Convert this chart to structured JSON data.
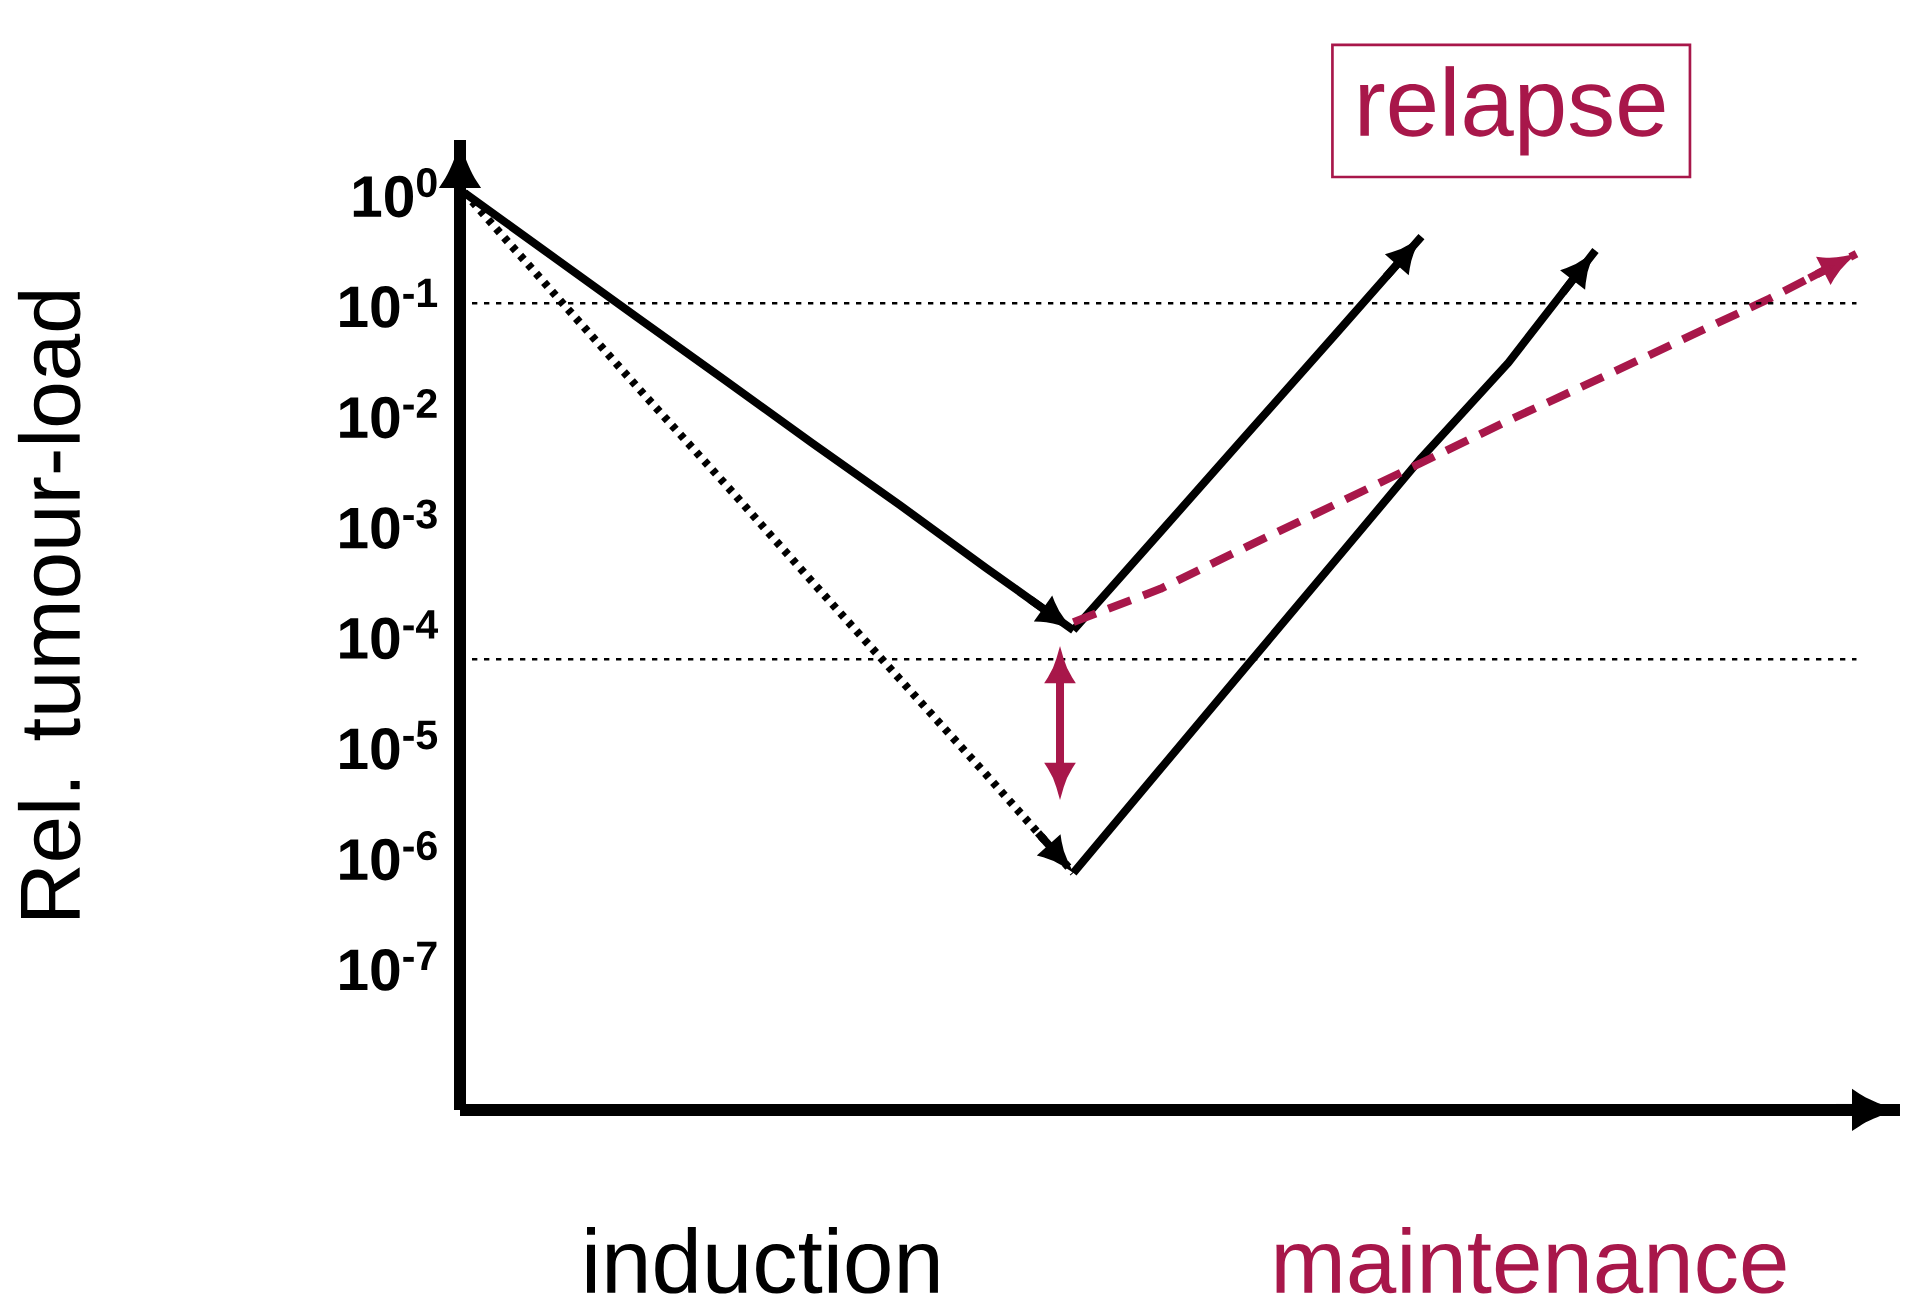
{
  "chart_data": {
    "type": "line",
    "log": "y",
    "ylabel": "Rel. tumour-load",
    "categories": [
      null,
      null,
      null,
      null,
      null,
      null,
      null,
      null,
      null,
      null,
      null,
      null,
      null,
      null,
      null,
      null,
      null
    ],
    "ylim": [
      5e-09,
      3
    ],
    "yticks": [
      {
        "value": 1,
        "label": "10$^{0}$"
      },
      {
        "value": 0.1,
        "label": "10$^{-1}$"
      },
      {
        "value": 0.01,
        "label": "10$^{-2}$"
      },
      {
        "value": 0.001,
        "label": "10$^{-3}$"
      },
      {
        "value": 0.0001,
        "label": "10$^{-4}$"
      },
      {
        "value": 1e-05,
        "label": "10$^{-5}$"
      },
      {
        "value": 1e-06,
        "label": "10$^{-6}$"
      },
      {
        "value": 1e-07,
        "label": "10$^{-7}$"
      }
    ],
    "tick_labels": "y",
    "grid": false,
    "series": [
      {
        "color": "#000000",
        "line_style": "solid",
        "values": [
          1,
          0.27,
          0.073,
          0.02,
          0.0054,
          0.0015,
          0.0004,
          0.00011,
          null,
          null,
          null,
          null,
          null,
          null,
          null,
          null,
          null
        ]
      },
      {
        "color": "#000000",
        "line_style": "dotted",
        "values": [
          1,
          0.13,
          0.017,
          0.0023,
          0.0003,
          4e-05,
          5.4e-06,
          7e-07,
          null,
          null,
          null,
          null,
          null,
          null,
          null,
          null,
          null
        ]
      },
      {
        "color": "#000000",
        "line_style": "solid",
        "values": [
          null,
          null,
          null,
          null,
          null,
          null,
          null,
          0.00011,
          0.00085,
          0.0066,
          0.051,
          0.4,
          null,
          null,
          null,
          null,
          null
        ]
      },
      {
        "color": "#000000",
        "line_style": "solid",
        "values": [
          null,
          null,
          null,
          null,
          null,
          null,
          null,
          7e-07,
          6.1e-06,
          5.3e-05,
          0.00046,
          0.004,
          0.029,
          0.3,
          null,
          null,
          null
        ]
      },
      {
        "color": "#a8174a",
        "line_style": "dashed",
        "values": [
          null,
          null,
          null,
          null,
          null,
          null,
          null,
          0.00013,
          0.00026,
          0.00063,
          0.0015,
          0.0036,
          0.0087,
          0.02,
          0.047,
          0.11,
          0.28
        ]
      }
    ],
    "ref_lines": [
      {
        "axis": "y",
        "value": 0.1,
        "color": "#000000",
        "line_style": "dotted"
      },
      {
        "axis": "y",
        "value": 6e-05,
        "color": "#000000",
        "line_style": "dotted"
      }
    ],
    "annotations": [
      "relapse",
      "induction",
      "maintenance"
    ]
  }
}
